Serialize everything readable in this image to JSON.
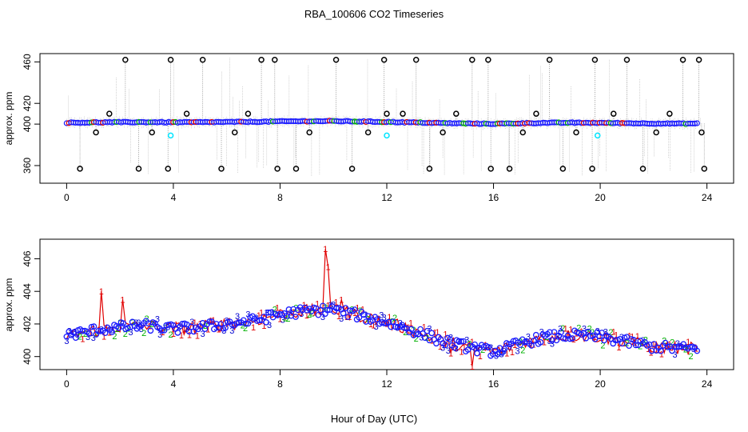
{
  "title": "RBA_100606  CO2 Timeseries",
  "chart_data": [
    {
      "type": "scatter",
      "ylabel": "approx. ppm",
      "xlabel": "",
      "xlim": [
        -1,
        25
      ],
      "ylim": [
        343,
        468
      ],
      "x_ticks": [
        "0",
        "4",
        "8",
        "12",
        "16",
        "20",
        "24"
      ],
      "y_ticks": [
        "360",
        "400",
        "420",
        "460"
      ],
      "x_tick_values": [
        0,
        4,
        8,
        12,
        16,
        20,
        24
      ],
      "y_tick_values": [
        360,
        400,
        420,
        460
      ],
      "series": [
        {
          "name": "black outliers",
          "x": [
            0.5,
            1.1,
            1.6,
            2.2,
            2.7,
            3.2,
            3.8,
            3.9,
            4.5,
            5.1,
            5.8,
            6.3,
            6.8,
            7.3,
            7.8,
            7.9,
            8.6,
            9.1,
            10.1,
            10.7,
            11.3,
            11.9,
            12.0,
            12.6,
            13.1,
            13.6,
            14.1,
            14.6,
            15.2,
            15.8,
            15.9,
            16.6,
            17.1,
            17.6,
            18.1,
            18.6,
            19.1,
            19.7,
            19.8,
            20.5,
            21.0,
            21.6,
            22.1,
            22.6,
            23.1,
            23.7,
            23.8,
            23.9
          ],
          "y": [
            357,
            392,
            410,
            462,
            357,
            392,
            357,
            462,
            410,
            462,
            357,
            392,
            410,
            462,
            462,
            357,
            357,
            392,
            462,
            357,
            392,
            462,
            410,
            410,
            462,
            357,
            392,
            410,
            462,
            462,
            357,
            357,
            392,
            410,
            462,
            357,
            392,
            357,
            462,
            410,
            462,
            357,
            392,
            410,
            462,
            462,
            392,
            357
          ],
          "color": "#000000"
        },
        {
          "name": "cyan points",
          "x": [
            3.9,
            12.0,
            19.9
          ],
          "y": [
            389,
            389,
            389
          ],
          "color": "#00e5ff"
        }
      ],
      "baseline_color": "#1a1aff"
    },
    {
      "type": "scatter",
      "ylabel": "approx. ppm",
      "xlabel": "Hour of Day (UTC)",
      "xlim": [
        -1,
        25
      ],
      "ylim": [
        399.2,
        407.2
      ],
      "x_ticks": [
        "0",
        "4",
        "8",
        "12",
        "16",
        "20",
        "24"
      ],
      "y_ticks": [
        "400",
        "402",
        "404",
        "406"
      ],
      "x_tick_values": [
        0,
        4,
        8,
        12,
        16,
        20,
        24
      ],
      "y_tick_values": [
        400,
        402,
        404,
        406
      ],
      "series": [
        {
          "name": "1",
          "label": "1",
          "color": "#e00000"
        },
        {
          "name": "2",
          "label": "2",
          "color": "#00b000"
        },
        {
          "name": "3",
          "label": "3",
          "color": "#0000d0"
        }
      ],
      "mean_profile": {
        "x": [
          0,
          1,
          2,
          3,
          4,
          5,
          6,
          7,
          8,
          9,
          10,
          11,
          12,
          13,
          14,
          15,
          16,
          17,
          18,
          19,
          20,
          21,
          22,
          23,
          23.7
        ],
        "y": [
          401.3,
          401.6,
          401.8,
          401.9,
          401.7,
          401.8,
          402.0,
          402.2,
          402.6,
          402.8,
          402.9,
          402.5,
          402.1,
          401.6,
          401.0,
          400.6,
          400.3,
          400.8,
          401.2,
          401.3,
          401.2,
          400.9,
          400.6,
          400.5,
          400.5
        ]
      },
      "red_spikes": {
        "x": [
          1.3,
          2.1,
          9.7,
          9.8,
          10.3,
          15.2,
          14.4
        ],
        "y": [
          404.0,
          403.5,
          406.6,
          405.5,
          403.5,
          399.4,
          400.2
        ]
      }
    }
  ]
}
